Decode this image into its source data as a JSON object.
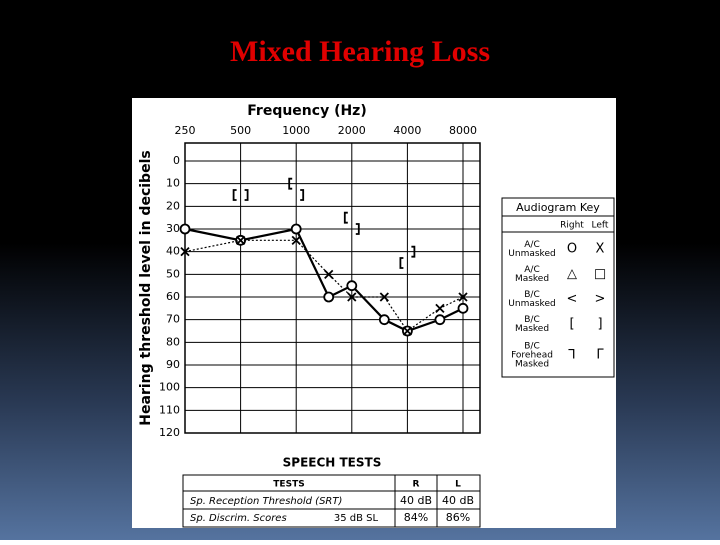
{
  "title": "Mixed Hearing Loss",
  "chart_data": {
    "type": "line",
    "x_label": "Frequency (Hz)",
    "y_label": "Hearing threshold level in decibels",
    "x": [
      250,
      500,
      1000,
      1500,
      2000,
      3000,
      4000,
      6000,
      8000
    ],
    "xscale": "log",
    "xlim": [
      250,
      8000
    ],
    "xticks": [
      250,
      500,
      1000,
      2000,
      4000,
      8000
    ],
    "ylim": [
      0,
      120
    ],
    "y_inverted": true,
    "yticks": [
      0,
      10,
      20,
      30,
      40,
      50,
      60,
      70,
      80,
      90,
      100,
      110,
      120
    ],
    "grid": true,
    "series": [
      {
        "name": "Right",
        "color": "#000000",
        "line": "solid",
        "marker": "circle",
        "values": [
          30,
          35,
          30,
          60,
          55,
          70,
          75,
          70,
          65
        ]
      },
      {
        "name": "Left",
        "color": "#000000",
        "line": "dotted",
        "marker": "x",
        "values": [
          40,
          35,
          35,
          50,
          60,
          60,
          75,
          65,
          60
        ]
      },
      {
        "color": "#000000",
        "marker": "bracket-left",
        "values": [
          null,
          15,
          10,
          null,
          25,
          null,
          45,
          null,
          null
        ]
      },
      {
        "color": "#000000",
        "marker": "bracket-right",
        "values": [
          null,
          15,
          15,
          null,
          30,
          null,
          40,
          null,
          null
        ]
      }
    ]
  },
  "audiogram_key": {
    "title": "Audiogram Key",
    "rows": [
      {
        "label": [
          "A/C",
          "Unmasked"
        ],
        "right": "O",
        "left": "X"
      },
      {
        "label": [
          "A/C",
          "Masked"
        ],
        "right": "△",
        "left": "□"
      },
      {
        "label": [
          "B/C",
          "Unmasked"
        ],
        "right": "<",
        "left": ">"
      },
      {
        "label": [
          "B/C",
          "Masked"
        ],
        "right": "[",
        "left": "]"
      },
      {
        "label": [
          "B/C",
          "Forehead",
          "Masked"
        ],
        "right": "⅂",
        "left": "Γ"
      }
    ]
  },
  "speech_tests": {
    "title": "SPEECH TESTS",
    "headers": [
      "TESTS",
      "R",
      "L"
    ],
    "rows": [
      {
        "test": "Sp. Reception Threshold (SRT)",
        "R": "40 dB",
        "L": "40 dB"
      },
      {
        "test": "Sp. Discrim. Scores",
        "level": "35 dB SL",
        "R": "84%",
        "L": "86%"
      }
    ]
  }
}
